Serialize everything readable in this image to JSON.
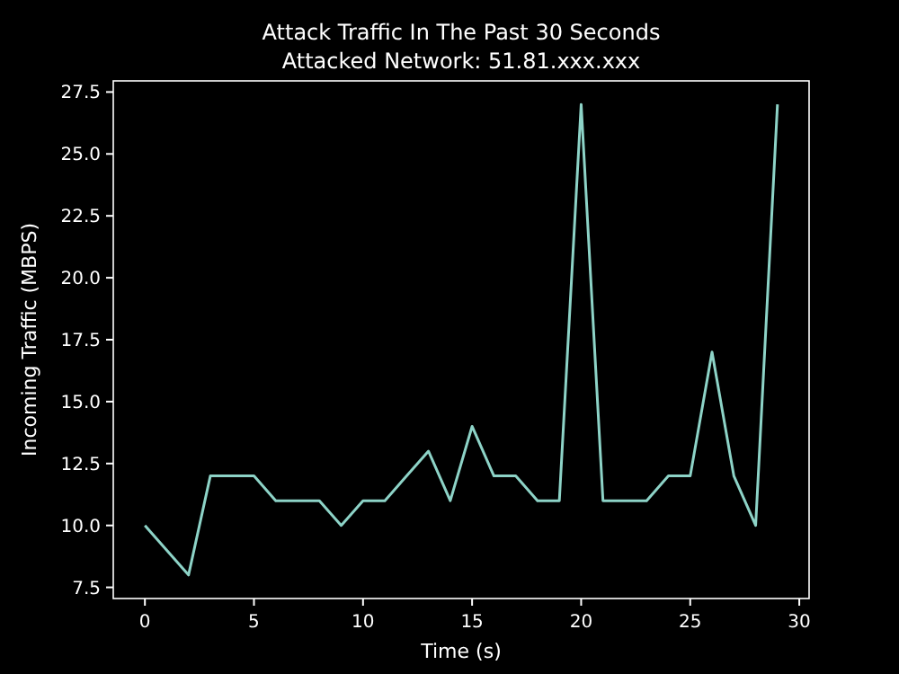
{
  "chart_data": {
    "type": "line",
    "title": "Attack Traffic In The Past 30 Seconds",
    "subtitle": "Attacked Network: 51.81.xxx.xxx",
    "xlabel": "Time (s)",
    "ylabel": "Incoming Traffic (MBPS)",
    "x": [
      0,
      1,
      2,
      3,
      4,
      5,
      6,
      7,
      8,
      9,
      10,
      11,
      12,
      13,
      14,
      15,
      16,
      17,
      18,
      19,
      20,
      21,
      22,
      23,
      24,
      25,
      26,
      27,
      28,
      29
    ],
    "series": [
      {
        "color": "#8dd3c7",
        "values": [
          10,
          9,
          8,
          12,
          12,
          12,
          11,
          11,
          11,
          10,
          11,
          11,
          12,
          13,
          11,
          14,
          12,
          12,
          11,
          11,
          27,
          11,
          11,
          11,
          12,
          12,
          17,
          12,
          10,
          27
        ]
      }
    ],
    "xlim": [
      -1.45,
      30.45
    ],
    "xticks": [
      0,
      5,
      10,
      15,
      20,
      25,
      30
    ],
    "ylim": [
      7.05,
      27.95
    ],
    "yticks": [
      {
        "value": 7.5,
        "label": "7.5"
      },
      {
        "value": 10,
        "label": "10.0"
      },
      {
        "value": 12.5,
        "label": "12.5"
      },
      {
        "value": 15,
        "label": "15.0"
      },
      {
        "value": 17.5,
        "label": "17.5"
      },
      {
        "value": 20,
        "label": "20.0"
      },
      {
        "value": 22.5,
        "label": "22.5"
      },
      {
        "value": 25,
        "label": "25.0"
      },
      {
        "value": 27.5,
        "label": "27.5"
      }
    ],
    "grid": false,
    "marker": "none",
    "line_style": "solid"
  }
}
